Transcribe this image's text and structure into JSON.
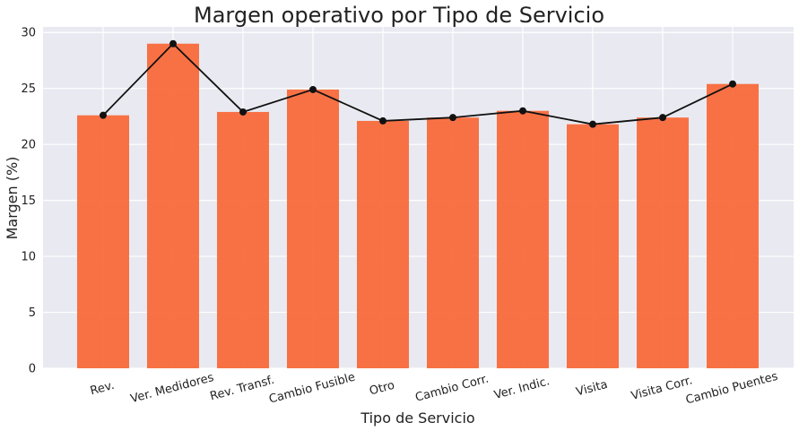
{
  "chart_data": {
    "type": "bar",
    "title": "Margen operativo por Tipo de Servicio",
    "xlabel": "Tipo de Servicio",
    "ylabel": "Margen (%)",
    "ylim": [
      0,
      30.5
    ],
    "yticks": [
      0,
      5,
      10,
      15,
      20,
      25,
      30
    ],
    "grid": true,
    "categories": [
      "Rev.",
      "Ver. Medidores",
      "Rev. Transf.",
      "Cambio Fusible",
      "Otro",
      "Cambio Corr.",
      "Ver. Indic.",
      "Visita",
      "Visita Corr.",
      "Cambio Puentes"
    ],
    "values": [
      22.6,
      29.0,
      22.9,
      24.9,
      22.1,
      22.4,
      23.0,
      21.8,
      22.4,
      25.4
    ],
    "line_values": [
      22.6,
      29.0,
      22.9,
      24.9,
      22.1,
      22.4,
      23.0,
      21.8,
      22.4,
      25.4
    ],
    "colors": {
      "bar": "#f96a3b",
      "line": "#111111",
      "plot_background": "#e9eaf1",
      "grid": "#ffffff"
    }
  }
}
